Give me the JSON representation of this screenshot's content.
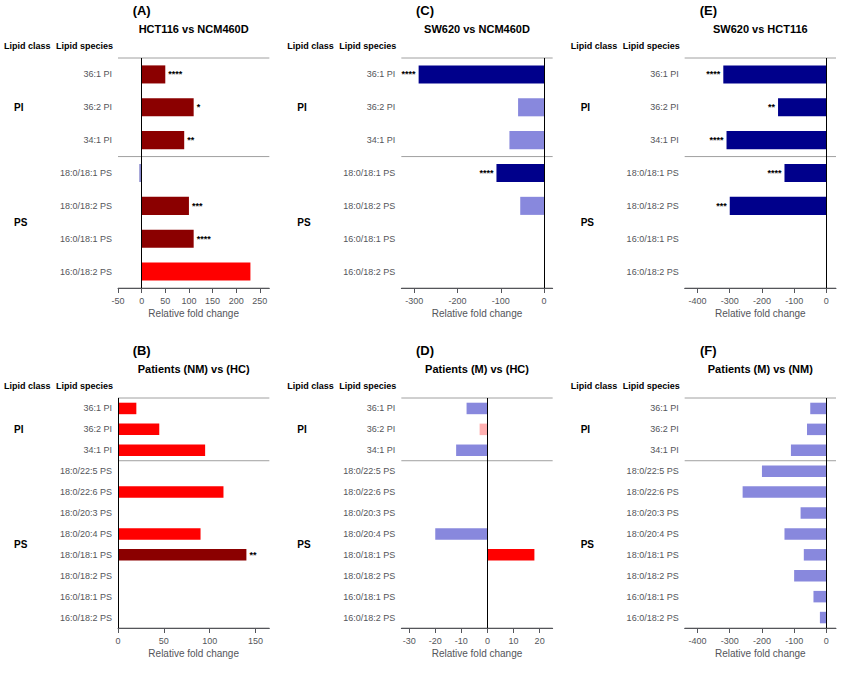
{
  "chart_data": [
    {
      "type": "bar",
      "orientation": "horizontal",
      "panel_label": "(A)",
      "title": "HCT116 vs NCM460D",
      "xlabel": "Relative fold change",
      "column_headers": [
        "Lipid class",
        "Lipid species"
      ],
      "categories": [
        "36:1 PI",
        "36:2 PI",
        "34:1 PI",
        "18:0/18:1 PS",
        "18:0/18:2 PS",
        "16:0/18:1 PS",
        "16:0/18:2 PS"
      ],
      "values": [
        50,
        110,
        90,
        -5,
        100,
        110,
        230
      ],
      "colors": [
        "#8B0000",
        "#8B0000",
        "#8B0000",
        "#8888CC",
        "#8B0000",
        "#8B0000",
        "#FF0000"
      ],
      "annotations": [
        "****",
        "*",
        "**",
        null,
        "***",
        "****",
        null
      ],
      "groups": [
        {
          "label": "PI",
          "categories": [
            "36:1 PI",
            "36:2 PI",
            "34:1 PI"
          ]
        },
        {
          "label": "PS",
          "categories": [
            "18:0/18:1 PS",
            "18:0/18:2 PS",
            "16:0/18:1 PS",
            "16:0/18:2 PS"
          ]
        }
      ],
      "zero_line": 0,
      "xlim": [
        -50,
        270
      ],
      "xticks": [
        -50,
        0,
        50,
        100,
        150,
        200,
        250
      ],
      "grid": false
    },
    {
      "type": "bar",
      "orientation": "horizontal",
      "panel_label": "(C)",
      "title": "SW620 vs NCM460D",
      "xlabel": "Relative fold change",
      "column_headers": [
        "Lipid class",
        "Lipid species"
      ],
      "categories": [
        "36:1 PI",
        "36:2 PI",
        "34:1 PI",
        "18:0/18:1 PS",
        "18:0/18:2 PS",
        "16:0/18:1 PS",
        "16:0/18:2 PS"
      ],
      "values": [
        -290,
        -60,
        -80,
        -110,
        -55,
        0,
        0
      ],
      "colors": [
        "#00008B",
        "#8888DD",
        "#8888DD",
        "#00008B",
        "#8888DD",
        "#8888DD",
        "#8888DD"
      ],
      "annotations": [
        "****",
        null,
        null,
        "****",
        null,
        null,
        null
      ],
      "groups": [
        {
          "label": "PI",
          "categories": [
            "36:1 PI",
            "36:2 PI",
            "34:1 PI"
          ]
        },
        {
          "label": "PS",
          "categories": [
            "18:0/18:1 PS",
            "18:0/18:2 PS",
            "16:0/18:1 PS",
            "16:0/18:2 PS"
          ]
        }
      ],
      "zero_line": 0,
      "xlim": [
        -330,
        20
      ],
      "xticks": [
        -300,
        -200,
        -100,
        0
      ],
      "grid": false
    },
    {
      "type": "bar",
      "orientation": "horizontal",
      "panel_label": "(E)",
      "title": "SW620 vs HCT116",
      "xlabel": "Relative fold change",
      "column_headers": [
        "Lipid class",
        "Lipid species"
      ],
      "categories": [
        "36:1 PI",
        "36:2 PI",
        "34:1 PI",
        "18:0/18:1 PS",
        "18:0/18:2 PS",
        "16:0/18:1 PS",
        "16:0/18:2 PS"
      ],
      "values": [
        -320,
        -150,
        -310,
        -130,
        -300,
        0,
        0
      ],
      "colors": [
        "#00008B",
        "#00008B",
        "#00008B",
        "#00008B",
        "#00008B",
        "#8888DD",
        "#8888DD"
      ],
      "annotations": [
        "****",
        "**",
        "****",
        "****",
        "***",
        null,
        null
      ],
      "groups": [
        {
          "label": "PI",
          "categories": [
            "36:1 PI",
            "36:2 PI",
            "34:1 PI"
          ]
        },
        {
          "label": "PS",
          "categories": [
            "18:0/18:1 PS",
            "18:0/18:2 PS",
            "16:0/18:1 PS",
            "16:0/18:2 PS"
          ]
        }
      ],
      "zero_line": 0,
      "xlim": [
        -440,
        30
      ],
      "xticks": [
        -400,
        -300,
        -200,
        -100,
        0
      ],
      "grid": false
    },
    {
      "type": "bar",
      "orientation": "horizontal",
      "panel_label": "(B)",
      "title": "Patients (NM) vs (HC)",
      "xlabel": "Relative fold change",
      "column_headers": [
        "Lipid class",
        "Lipid species"
      ],
      "categories": [
        "36:1 PI",
        "36:2 PI",
        "34:1 PI",
        "18:0/22:5 PS",
        "18:0/22:6 PS",
        "18:0/20:3 PS",
        "18:0/20:4 PS",
        "18:0/18:1 PS",
        "18:0/18:2 PS",
        "16:0/18:1 PS",
        "16:0/18:2 PS"
      ],
      "values": [
        20,
        45,
        95,
        0,
        115,
        0,
        90,
        140,
        0,
        0,
        0
      ],
      "colors": [
        "#FF0000",
        "#FF0000",
        "#FF0000",
        "#FF0000",
        "#FF0000",
        "#FF0000",
        "#FF0000",
        "#8B0000",
        "#FF0000",
        "#FF0000",
        "#FF0000"
      ],
      "annotations": [
        null,
        null,
        null,
        null,
        null,
        null,
        null,
        "**",
        null,
        null,
        null
      ],
      "groups": [
        {
          "label": "PI",
          "categories": [
            "36:1 PI",
            "36:2 PI",
            "34:1 PI"
          ]
        },
        {
          "label": "PS",
          "categories": [
            "18:0/22:5 PS",
            "18:0/22:6 PS",
            "18:0/20:3 PS",
            "18:0/20:4 PS",
            "18:0/18:1 PS",
            "18:0/18:2 PS",
            "16:0/18:1 PS",
            "16:0/18:2 PS"
          ]
        }
      ],
      "zero_line": 0,
      "xlim": [
        0,
        165
      ],
      "xticks": [
        0,
        50,
        100,
        150
      ],
      "grid": false
    },
    {
      "type": "bar",
      "orientation": "horizontal",
      "panel_label": "(D)",
      "title": "Patients (M) vs (HC)",
      "xlabel": "Relative fold change",
      "column_headers": [
        "Lipid class",
        "Lipid species"
      ],
      "categories": [
        "36:1 PI",
        "36:2 PI",
        "34:1 PI",
        "18:0/22:5 PS",
        "18:0/22:6 PS",
        "18:0/20:3 PS",
        "18:0/20:4 PS",
        "18:0/18:1 PS",
        "18:0/18:2 PS",
        "16:0/18:1 PS",
        "16:0/18:2 PS"
      ],
      "values": [
        -8,
        -3,
        -12,
        0,
        0,
        0,
        -20,
        18,
        0,
        0,
        0
      ],
      "colors": [
        "#8888DD",
        "#FFB0B0",
        "#8888DD",
        "#8888DD",
        "#8888DD",
        "#8888DD",
        "#8888DD",
        "#FF0000",
        "#8888DD",
        "#8888DD",
        "#8888DD"
      ],
      "annotations": [
        null,
        null,
        null,
        null,
        null,
        null,
        null,
        null,
        null,
        null,
        null
      ],
      "groups": [
        {
          "label": "PI",
          "categories": [
            "36:1 PI",
            "36:2 PI",
            "34:1 PI"
          ]
        },
        {
          "label": "PS",
          "categories": [
            "18:0/22:5 PS",
            "18:0/22:6 PS",
            "18:0/20:3 PS",
            "18:0/20:4 PS",
            "18:0/18:1 PS",
            "18:0/18:2 PS",
            "16:0/18:1 PS",
            "16:0/18:2 PS"
          ]
        }
      ],
      "zero_line": 0,
      "xlim": [
        -33,
        25
      ],
      "xticks": [
        -30,
        -20,
        -10,
        0,
        10,
        20
      ],
      "grid": false
    },
    {
      "type": "bar",
      "orientation": "horizontal",
      "panel_label": "(F)",
      "title": "Patients (M) vs (NM)",
      "xlabel": "Relative fold change",
      "column_headers": [
        "Lipid class",
        "Lipid species"
      ],
      "categories": [
        "36:1 PI",
        "36:2 PI",
        "34:1 PI",
        "18:0/22:5 PS",
        "18:0/22:6 PS",
        "18:0/20:3 PS",
        "18:0/20:4 PS",
        "18:0/18:1 PS",
        "18:0/18:2 PS",
        "16:0/18:1 PS",
        "16:0/18:2 PS"
      ],
      "values": [
        -50,
        -60,
        -110,
        -200,
        -260,
        -80,
        -130,
        -70,
        -100,
        -40,
        -20
      ],
      "colors": [
        "#8888DD",
        "#8888DD",
        "#8888DD",
        "#8888DD",
        "#8888DD",
        "#8888DD",
        "#8888DD",
        "#8888DD",
        "#8888DD",
        "#8888DD",
        "#8888DD"
      ],
      "annotations": [
        null,
        null,
        null,
        null,
        null,
        null,
        null,
        null,
        null,
        null,
        null
      ],
      "groups": [
        {
          "label": "PI",
          "categories": [
            "36:1 PI",
            "36:2 PI",
            "34:1 PI"
          ]
        },
        {
          "label": "PS",
          "categories": [
            "18:0/22:5 PS",
            "18:0/22:6 PS",
            "18:0/20:3 PS",
            "18:0/20:4 PS",
            "18:0/18:1 PS",
            "18:0/18:2 PS",
            "16:0/18:1 PS",
            "16:0/18:2 PS"
          ]
        }
      ],
      "zero_line": 0,
      "xlim": [
        -440,
        30
      ],
      "xticks": [
        -400,
        -300,
        -200,
        -100,
        0
      ],
      "grid": false
    }
  ]
}
